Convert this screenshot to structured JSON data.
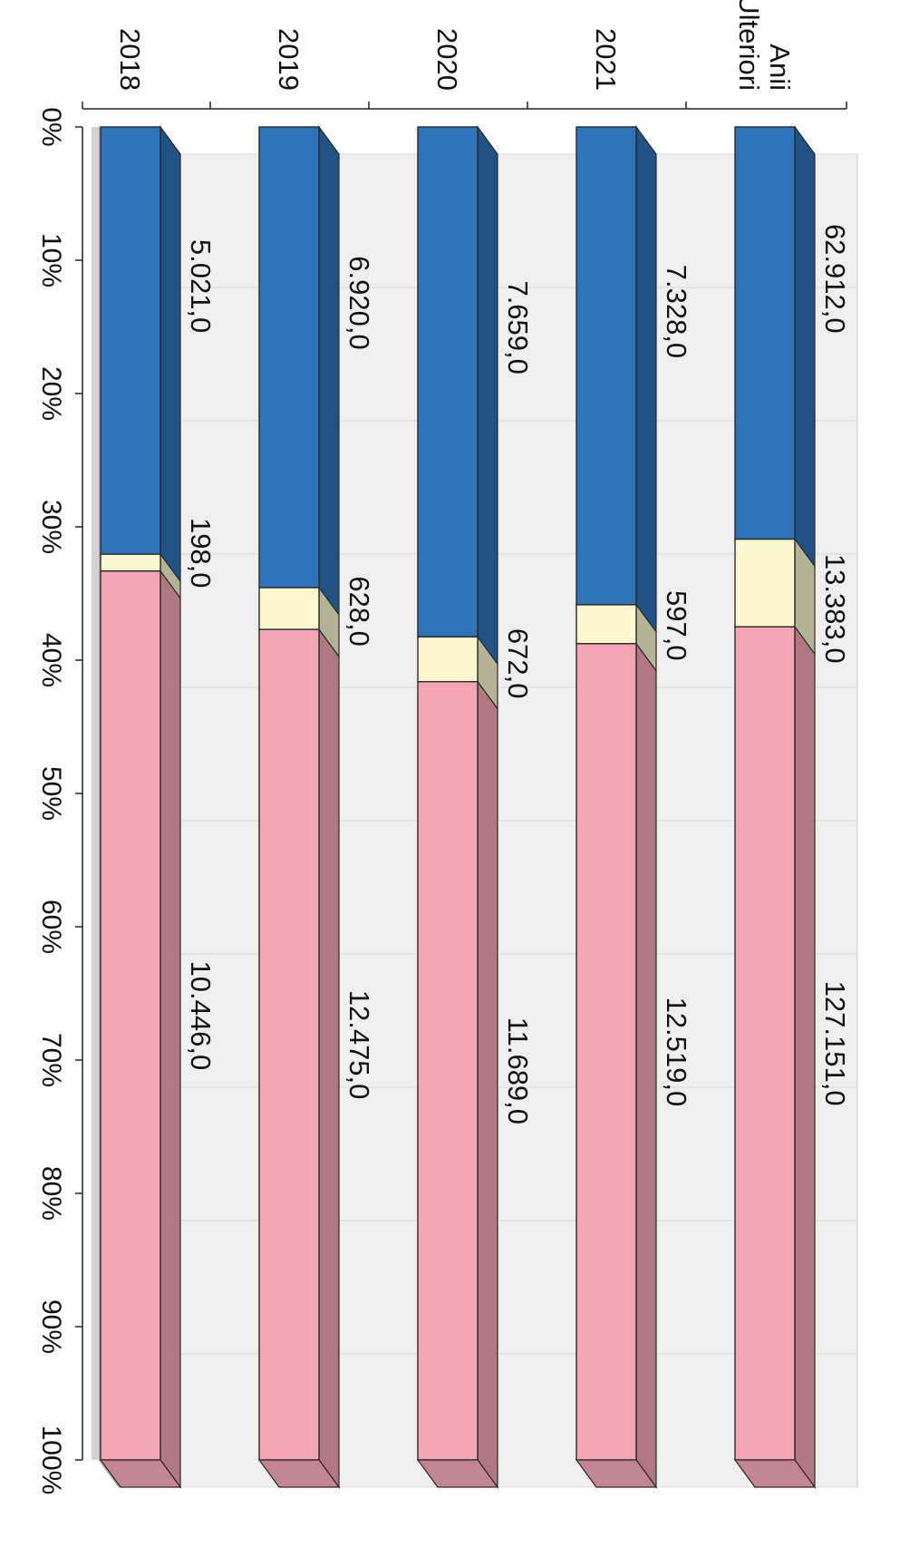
{
  "chart_data": {
    "type": "bar",
    "stacked": "percent",
    "orientation": "horizontal",
    "three_d": true,
    "rotated_image": "90deg-counterclockwise",
    "categories": [
      "Anii Ulteriori",
      "2021",
      "2020",
      "2019",
      "2018"
    ],
    "category_lines": [
      [
        "Anii",
        "Ulteriori"
      ],
      [
        "2021"
      ],
      [
        "2020"
      ],
      [
        "2019"
      ],
      [
        "2018"
      ]
    ],
    "series": [
      {
        "color": "#2e72b8",
        "values": [
          62912.0,
          7328.0,
          7659.0,
          6920.0,
          5021.0
        ],
        "labels": [
          "62.912,0",
          "7.328,0",
          "7.659,0",
          "6.920,0",
          "5.021,0"
        ]
      },
      {
        "color": "#fbf8cf",
        "values": [
          13383.0,
          597.0,
          672.0,
          628.0,
          198.0
        ],
        "labels": [
          "13.383,0",
          "597,0",
          "672,0",
          "628,0",
          "198,0"
        ]
      },
      {
        "color": "#f4a6b5",
        "values": [
          127151.0,
          12519.0,
          11689.0,
          12475.0,
          10446.0
        ],
        "labels": [
          "127.151,0",
          "12.519,0",
          "11.689,0",
          "12.475,0",
          "10.446,0"
        ]
      }
    ],
    "x_axis": {
      "ticks": [
        "0%",
        "10%",
        "20%",
        "30%",
        "40%",
        "50%",
        "60%",
        "70%",
        "80%",
        "90%",
        "100%"
      ],
      "range": [
        0,
        100
      ]
    },
    "colors": {
      "wall": "#efefef",
      "floor": "#bdb8bd",
      "gridline": "#d8d8d8"
    },
    "title": "",
    "xlabel": "",
    "ylabel": "",
    "legend": "none"
  }
}
